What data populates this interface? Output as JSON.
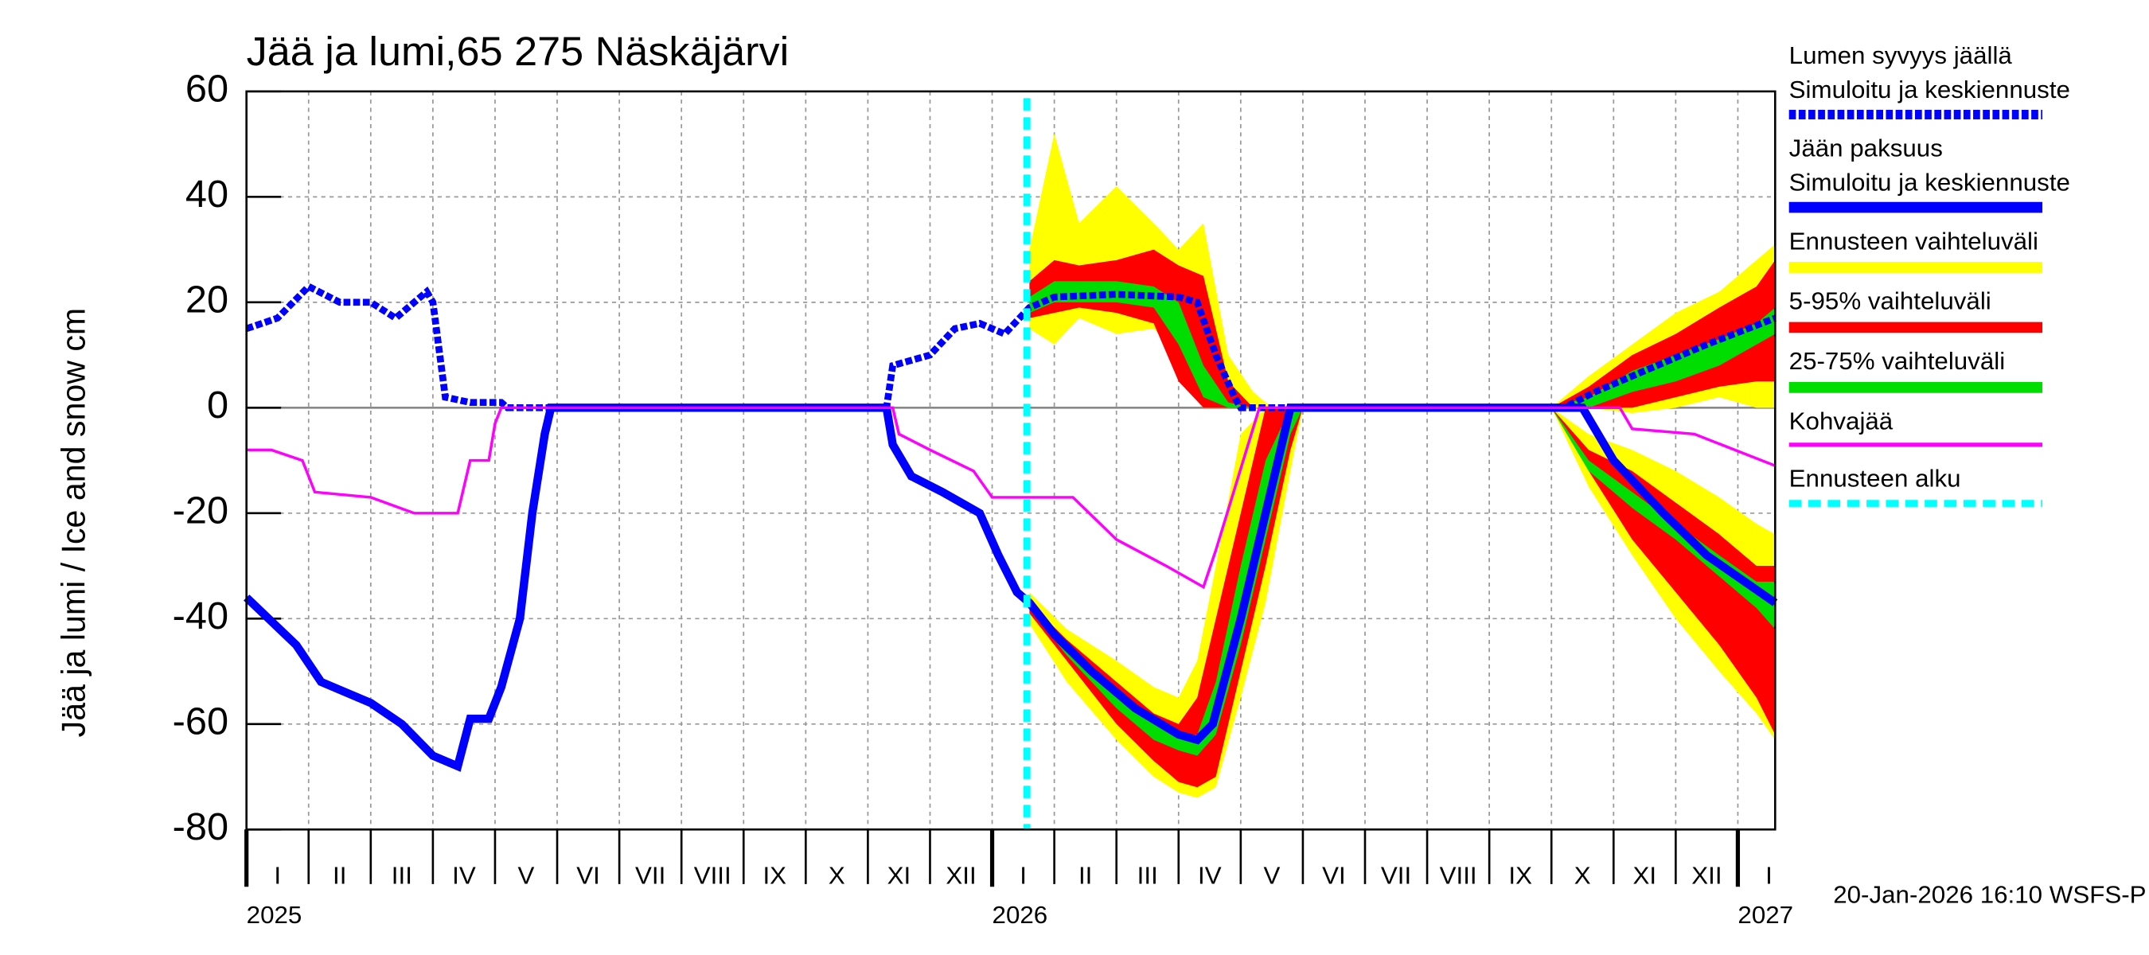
{
  "chart_data": {
    "type": "line",
    "title": "Jää ja lumi,65 275 Näskäjärvi",
    "y_label": "Jää ja lumi / Ice and snow    cm",
    "footer": "20-Jan-2026 16:10 WSFS-P",
    "xlim": [
      0,
      24.6
    ],
    "ylim": [
      -80,
      60
    ],
    "yticks": [
      -80,
      -60,
      -40,
      -20,
      0,
      20,
      40,
      60
    ],
    "xticks": [
      {
        "value": 0,
        "label": "I"
      },
      {
        "value": 1,
        "label": "II"
      },
      {
        "value": 2,
        "label": "III"
      },
      {
        "value": 3,
        "label": "IV"
      },
      {
        "value": 4,
        "label": "V"
      },
      {
        "value": 5,
        "label": "VI"
      },
      {
        "value": 6,
        "label": "VII"
      },
      {
        "value": 7,
        "label": "VIII"
      },
      {
        "value": 8,
        "label": "IX"
      },
      {
        "value": 9,
        "label": "X"
      },
      {
        "value": 10,
        "label": "XI"
      },
      {
        "value": 11,
        "label": "XII"
      },
      {
        "value": 12,
        "label": "I"
      },
      {
        "value": 13,
        "label": "II"
      },
      {
        "value": 14,
        "label": "III"
      },
      {
        "value": 15,
        "label": "IV"
      },
      {
        "value": 16,
        "label": "V"
      },
      {
        "value": 17,
        "label": "VI"
      },
      {
        "value": 18,
        "label": "VII"
      },
      {
        "value": 19,
        "label": "VIII"
      },
      {
        "value": 20,
        "label": "IX"
      },
      {
        "value": 21,
        "label": "X"
      },
      {
        "value": 22,
        "label": "XI"
      },
      {
        "value": 23,
        "label": "XII"
      },
      {
        "value": 24,
        "label": "I"
      }
    ],
    "year_ticks": [
      {
        "value": 0,
        "label": "2025"
      },
      {
        "value": 12,
        "label": "2026"
      },
      {
        "value": 24,
        "label": "2027"
      }
    ],
    "grid": true,
    "bands": [
      {
        "name": "Ennusteen vaihteluväli",
        "color": "#ffff00",
        "areas": [
          {
            "x": [
              12.6,
              13.0,
              13.4,
              14.0,
              14.6,
              15.0,
              15.4,
              15.8,
              16.2,
              16.5
            ],
            "upper": [
              30,
              52,
              35,
              42,
              35,
              30,
              35,
              10,
              3,
              0
            ],
            "lower": [
              15,
              12,
              17,
              14,
              15,
              10,
              0,
              0,
              0,
              0
            ]
          },
          {
            "x": [
              21.0,
              21.6,
              22.3,
              23.0,
              23.7,
              24.3,
              24.6
            ],
            "upper": [
              0,
              6,
              12,
              18,
              22,
              28,
              31
            ],
            "lower": [
              0,
              0,
              -1,
              0,
              2,
              0,
              0
            ]
          },
          {
            "x": [
              12.6,
              13.2,
              14.0,
              14.6,
              15.0,
              15.3,
              15.6,
              16.0,
              16.4,
              16.8,
              17.0
            ],
            "upper": [
              -35,
              -42,
              -48,
              -53,
              -55,
              -48,
              -30,
              -5,
              0,
              0,
              0
            ],
            "lower": [
              -41,
              -52,
              -63,
              -70,
              -73,
              -74,
              -72,
              -55,
              -37,
              -12,
              0
            ]
          },
          {
            "x": [
              21.0,
              21.6,
              22.3,
              23.0,
              23.7,
              24.3,
              24.6
            ],
            "upper": [
              0,
              -5,
              -8,
              -12,
              -17,
              -22,
              -24
            ],
            "lower": [
              0,
              -15,
              -28,
              -40,
              -50,
              -58,
              -63
            ]
          }
        ]
      },
      {
        "name": "5-95% vaihteluväli",
        "color": "#ff0000",
        "areas": [
          {
            "x": [
              12.6,
              13.0,
              13.4,
              14.0,
              14.6,
              15.0,
              15.4,
              15.8,
              16.2,
              16.5
            ],
            "upper": [
              24,
              28,
              27,
              28,
              30,
              27,
              25,
              5,
              0,
              0
            ],
            "lower": [
              17,
              18,
              19,
              18,
              16,
              5,
              0,
              0,
              0,
              0
            ]
          },
          {
            "x": [
              21.0,
              21.6,
              22.3,
              23.0,
              23.7,
              24.3,
              24.6
            ],
            "upper": [
              0,
              4,
              10,
              14,
              19,
              23,
              28
            ],
            "lower": [
              0,
              0,
              0,
              2,
              4,
              5,
              5
            ]
          },
          {
            "x": [
              12.6,
              13.2,
              14.0,
              14.6,
              15.0,
              15.3,
              15.6,
              16.0,
              16.4,
              16.8,
              17.0
            ],
            "upper": [
              -37,
              -44,
              -52,
              -58,
              -60,
              -55,
              -40,
              -20,
              0,
              0,
              0
            ],
            "lower": [
              -39,
              -48,
              -60,
              -67,
              -71,
              -72,
              -70,
              -50,
              -30,
              -8,
              0
            ]
          },
          {
            "x": [
              21.0,
              21.6,
              22.3,
              23.0,
              23.7,
              24.3,
              24.6
            ],
            "upper": [
              0,
              -8,
              -12,
              -18,
              -24,
              -30,
              -30
            ],
            "lower": [
              0,
              -12,
              -25,
              -35,
              -45,
              -55,
              -62
            ]
          }
        ]
      },
      {
        "name": "25-75% vaihteluväli",
        "color": "#00dd00",
        "areas": [
          {
            "x": [
              12.6,
              13.0,
              13.4,
              14.0,
              14.6,
              15.0,
              15.4,
              15.8,
              16.2,
              16.5
            ],
            "upper": [
              21,
              24,
              24,
              24,
              23,
              20,
              8,
              1,
              0,
              0
            ],
            "lower": [
              18,
              20,
              20,
              20,
              19,
              12,
              2,
              0,
              0,
              0
            ]
          },
          {
            "x": [
              21.0,
              21.6,
              22.3,
              23.0,
              23.7,
              24.3,
              24.6
            ],
            "upper": [
              0,
              2,
              7,
              10,
              13,
              16,
              19
            ],
            "lower": [
              0,
              0,
              3,
              5,
              8,
              12,
              14
            ]
          },
          {
            "x": [
              12.6,
              13.2,
              14.0,
              14.6,
              15.0,
              15.3,
              15.6,
              16.0,
              16.4,
              16.8,
              17.0
            ],
            "upper": [
              -36,
              -45,
              -54,
              -60,
              -62,
              -62,
              -52,
              -30,
              -10,
              0,
              0
            ],
            "lower": [
              -38,
              -47,
              -57,
              -63,
              -65,
              -66,
              -62,
              -45,
              -25,
              -5,
              0
            ]
          },
          {
            "x": [
              21.0,
              21.6,
              22.3,
              23.0,
              23.7,
              24.3,
              24.6
            ],
            "upper": [
              0,
              -10,
              -16,
              -22,
              -28,
              -33,
              -33
            ],
            "lower": [
              0,
              -12,
              -19,
              -25,
              -32,
              -38,
              -42
            ]
          }
        ]
      }
    ],
    "series": [
      {
        "name": "Lumen syvyys jäällä",
        "subname": "Simuloitu ja keskiennuste",
        "color": "#0000ff",
        "style": "dashed",
        "x": [
          0,
          0.5,
          1.0,
          1.5,
          2.0,
          2.4,
          2.9,
          3.0,
          3.2,
          3.6,
          4.1,
          4.2,
          10.3,
          10.4,
          11.0,
          11.4,
          11.8,
          12.2,
          12.6,
          13.0,
          14.0,
          15.0,
          15.3,
          15.6,
          15.9,
          16.0,
          21.2,
          21.7,
          22.5,
          23.5,
          24.6
        ],
        "values": [
          15,
          17,
          23,
          20,
          20,
          17,
          22,
          20,
          2,
          1,
          1,
          0,
          0,
          8,
          10,
          15,
          16,
          14,
          19,
          21,
          21.5,
          21,
          20,
          10,
          2,
          0,
          0,
          3,
          7,
          12,
          17
        ]
      },
      {
        "name": "Jään paksuus",
        "subname": "Simuloitu ja keskiennuste",
        "color": "#0000ff",
        "style": "solid",
        "x": [
          0,
          0.8,
          1.2,
          2.0,
          2.5,
          3.0,
          3.4,
          3.6,
          3.9,
          4.1,
          4.4,
          4.6,
          4.8,
          4.9,
          10.3,
          10.4,
          10.7,
          11.2,
          11.8,
          12.1,
          12.4,
          12.6,
          13.0,
          13.6,
          14.3,
          15.0,
          15.3,
          15.55,
          16.0,
          16.4,
          16.8,
          21.5,
          22.0,
          22.8,
          23.5,
          24.6
        ],
        "values": [
          -36,
          -45,
          -52,
          -56,
          -60,
          -66,
          -68,
          -59,
          -59,
          -53,
          -40,
          -20,
          -5,
          0,
          0,
          -7,
          -13,
          -16,
          -20,
          -28,
          -35,
          -37,
          -43,
          -50,
          -57,
          -62,
          -63,
          -60,
          -40,
          -20,
          0,
          0,
          -10,
          -20,
          -28,
          -37
        ]
      },
      {
        "name": "Kohvajää",
        "color": "#ff00ff",
        "style": "thin",
        "x": [
          0,
          0.4,
          0.9,
          1.1,
          2.0,
          2.7,
          3.4,
          3.6,
          3.9,
          4.0,
          4.1,
          10.4,
          10.5,
          11.0,
          11.7,
          12.0,
          13.3,
          14.0,
          14.8,
          15.4,
          15.6,
          16.3,
          22.1,
          22.3,
          23.3,
          24.6
        ],
        "values": [
          -8,
          -8,
          -10,
          -16,
          -17,
          -20,
          -20,
          -10,
          -10,
          -3,
          0,
          0,
          -5,
          -8,
          -12,
          -17,
          -17,
          -25,
          -30,
          -34,
          -27,
          0,
          0,
          -4,
          -5,
          -11
        ]
      }
    ],
    "forecast_start": {
      "name": "Ennusteen alku",
      "color": "#00ffff",
      "x": 12.56
    }
  }
}
